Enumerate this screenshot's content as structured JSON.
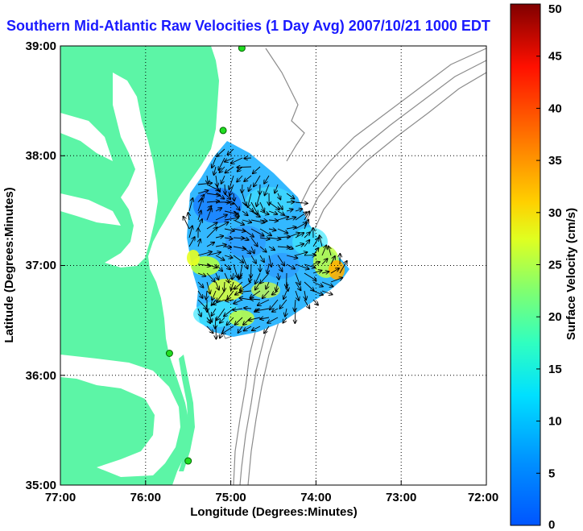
{
  "title": "Southern Mid-Atlantic Raw Velocities (1 Day Avg) 2007/10/21 1000 EDT",
  "map": {
    "xlabel": "Longitude (Degrees:Minutes)",
    "ylabel": "Latitude (Degrees:Minutes)",
    "xticks": [
      "77:00",
      "76:00",
      "75:00",
      "74:00",
      "73:00",
      "72:00"
    ],
    "yticks": [
      "39:00",
      "38:00",
      "37:00",
      "36:00",
      "35:00"
    ],
    "lon_range": [
      -77,
      -72
    ],
    "lat_range": [
      35,
      39
    ],
    "land_color": "#5cf5a6",
    "grid": "dotted"
  },
  "colorbar": {
    "label": "Surface Velocity (cm/s)",
    "ticks": [
      "0",
      "5",
      "10",
      "15",
      "20",
      "25",
      "30",
      "35",
      "40",
      "45",
      "50"
    ],
    "range": [
      0,
      50
    ],
    "colormap": "jet"
  },
  "stations": [
    {
      "lon": -74.87,
      "lat": 38.98
    },
    {
      "lon": -75.09,
      "lat": 38.23
    },
    {
      "lon": -75.72,
      "lat": 36.2
    },
    {
      "lon": -75.5,
      "lat": 35.22
    }
  ]
}
